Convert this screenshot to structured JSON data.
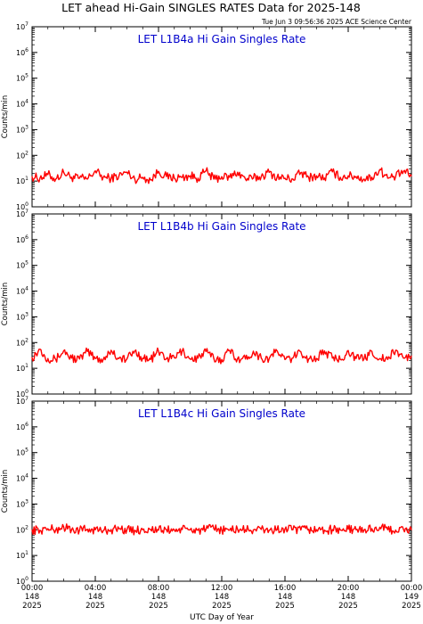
{
  "header": {
    "title": "LET ahead Hi-Gain SINGLES RATES Data for 2025-148",
    "timestamp": "Tue Jun  3 09:56:36 2025 ACE Science Center"
  },
  "x_axis": {
    "title": "UTC Day of Year",
    "ticks": [
      {
        "time": "00:00",
        "day": "148",
        "year": "2025"
      },
      {
        "time": "04:00",
        "day": "148",
        "year": "2025"
      },
      {
        "time": "08:00",
        "day": "148",
        "year": "2025"
      },
      {
        "time": "12:00",
        "day": "148",
        "year": "2025"
      },
      {
        "time": "16:00",
        "day": "148",
        "year": "2025"
      },
      {
        "time": "20:00",
        "day": "148",
        "year": "2025"
      },
      {
        "time": "00:00",
        "day": "149",
        "year": "2025"
      }
    ]
  },
  "colors": {
    "line": "#ff0000",
    "panel_title": "#0000cc",
    "axes": "#000000"
  },
  "chart_data": [
    {
      "type": "line",
      "title": "LET L1B4a Hi Gain Singles Rate",
      "ylabel": "Counts/min",
      "yscale": "log",
      "ylim": [
        1,
        10000000
      ],
      "ytick_exponents": [
        0,
        1,
        2,
        3,
        4,
        5,
        6,
        7
      ],
      "xlabel": "UTC Day of Year",
      "xlim_hours": [
        0,
        24
      ],
      "series": [
        {
          "hours": [
            0,
            0.5,
            1,
            1.5,
            2,
            2.5,
            3,
            3.5,
            4,
            4.5,
            5,
            5.5,
            6,
            6.5,
            7,
            7.5,
            8,
            8.5,
            9,
            9.5,
            10,
            10.5,
            11,
            11.5,
            12,
            12.5,
            13,
            13.5,
            14,
            14.5,
            15,
            15.5,
            16,
            16.5,
            17,
            17.5,
            18,
            18.5,
            19,
            19.5,
            20,
            20.5,
            21,
            21.5,
            22,
            22.5,
            23,
            23.5,
            24
          ],
          "values": [
            15,
            13,
            18,
            12,
            22,
            14,
            13,
            12,
            25,
            14,
            13,
            16,
            22,
            12,
            14,
            11,
            24,
            15,
            13,
            14,
            16,
            13,
            25,
            12,
            15,
            14,
            22,
            12,
            13,
            15,
            22,
            14,
            13,
            12,
            21,
            14,
            16,
            13,
            23,
            14,
            16,
            15,
            12,
            14,
            28,
            13,
            15,
            24,
            16
          ]
        }
      ]
    },
    {
      "type": "line",
      "title": "LET L1B4b Hi Gain Singles Rate",
      "ylabel": "Counts/min",
      "yscale": "log",
      "ylim": [
        1,
        10000000
      ],
      "ytick_exponents": [
        0,
        1,
        2,
        3,
        4,
        5,
        6,
        7
      ],
      "xlabel": "UTC Day of Year",
      "xlim_hours": [
        0,
        24
      ],
      "series": [
        {
          "hours": [
            0,
            0.5,
            1,
            1.5,
            2,
            2.5,
            3,
            3.5,
            4,
            4.5,
            5,
            5.5,
            6,
            6.5,
            7,
            7.5,
            8,
            8.5,
            9,
            9.5,
            10,
            10.5,
            11,
            11.5,
            12,
            12.5,
            13,
            13.5,
            14,
            14.5,
            15,
            15.5,
            16,
            16.5,
            17,
            17.5,
            18,
            18.5,
            19,
            19.5,
            20,
            20.5,
            21,
            21.5,
            22,
            22.5,
            23,
            23.5,
            24
          ],
          "values": [
            26,
            55,
            24,
            22,
            48,
            25,
            23,
            45,
            24,
            22,
            50,
            24,
            23,
            47,
            25,
            22,
            46,
            24,
            26,
            48,
            23,
            25,
            45,
            24,
            22,
            50,
            24,
            23,
            46,
            25,
            24,
            48,
            22,
            25,
            44,
            23,
            24,
            47,
            25,
            22,
            49,
            24,
            23,
            45,
            24,
            22,
            50,
            25,
            30
          ]
        }
      ]
    },
    {
      "type": "line",
      "title": "LET L1B4c Hi Gain Singles Rate",
      "ylabel": "Counts/min",
      "yscale": "log",
      "ylim": [
        1,
        10000000
      ],
      "ytick_exponents": [
        0,
        1,
        2,
        3,
        4,
        5,
        6,
        7
      ],
      "xlabel": "UTC Day of Year",
      "xlim_hours": [
        0,
        24
      ],
      "series": [
        {
          "hours": [
            0,
            0.5,
            1,
            1.5,
            2,
            2.5,
            3,
            3.5,
            4,
            4.5,
            5,
            5.5,
            6,
            6.5,
            7,
            7.5,
            8,
            8.5,
            9,
            9.5,
            10,
            10.5,
            11,
            11.5,
            12,
            12.5,
            13,
            13.5,
            14,
            14.5,
            15,
            15.5,
            16,
            16.5,
            17,
            17.5,
            18,
            18.5,
            19,
            19.5,
            20,
            20.5,
            21,
            21.5,
            22,
            22.5,
            23,
            23.5,
            24
          ],
          "values": [
            100,
            95,
            110,
            98,
            130,
            100,
            96,
            105,
            100,
            92,
            102,
            110,
            98,
            95,
            100,
            104,
            96,
            100,
            98,
            102,
            100,
            96,
            104,
            110,
            100,
            97,
            105,
            100,
            98,
            103,
            96,
            100,
            105,
            100,
            98,
            104,
            100,
            96,
            102,
            99,
            104,
            100,
            98,
            110,
            125,
            100,
            97,
            102,
            100
          ]
        }
      ]
    }
  ]
}
